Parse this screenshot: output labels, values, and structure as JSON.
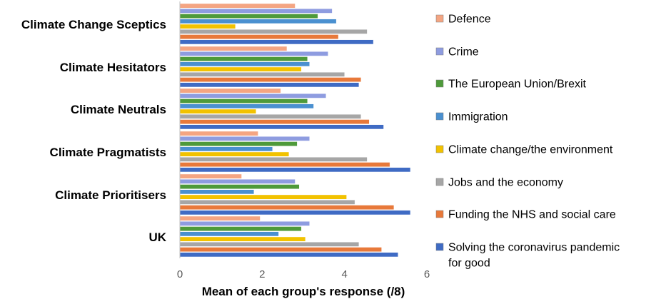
{
  "chart_data": {
    "type": "bar",
    "orientation": "horizontal",
    "title": "",
    "xlabel": "Mean of each group's response (/8)",
    "ylabel": "",
    "xlim": [
      0,
      6
    ],
    "xticks": [
      "0",
      "2",
      "4",
      "6"
    ],
    "grid": false,
    "legend_position": "right",
    "categories": [
      "Climate Change Sceptics",
      "Climate Hesitators",
      "Climate Neutrals",
      "Climate Pragmatists",
      "Climate Prioritisers",
      "UK"
    ],
    "series": [
      {
        "name": "Defence",
        "color": "#F4A582",
        "values": [
          2.8,
          2.6,
          2.45,
          1.9,
          1.5,
          1.95
        ]
      },
      {
        "name": "Crime",
        "color": "#8E9CE0",
        "values": [
          3.7,
          3.6,
          3.55,
          3.15,
          2.8,
          3.15
        ]
      },
      {
        "name": "The European Union/Brexit",
        "color": "#4E9A3A",
        "values": [
          3.35,
          3.1,
          3.1,
          2.85,
          2.9,
          2.95
        ]
      },
      {
        "name": "Immigration",
        "color": "#4A90D0",
        "values": [
          3.8,
          3.15,
          3.25,
          2.25,
          1.8,
          2.4
        ]
      },
      {
        "name": "Climate change/the environment",
        "color": "#F2C200",
        "values": [
          1.35,
          2.95,
          1.85,
          2.65,
          4.05,
          3.05
        ]
      },
      {
        "name": "Jobs and the economy",
        "color": "#A6A6A6",
        "values": [
          4.55,
          4.0,
          4.4,
          4.55,
          4.25,
          4.35
        ]
      },
      {
        "name": "Funding the NHS and social care",
        "color": "#E8793A",
        "values": [
          3.85,
          4.4,
          4.6,
          5.1,
          5.2,
          4.9
        ]
      },
      {
        "name": "Solving the coronavirus pandemic for good",
        "color": "#3F6BC4",
        "values": [
          4.7,
          4.35,
          4.95,
          5.6,
          5.6,
          5.3
        ]
      }
    ]
  }
}
